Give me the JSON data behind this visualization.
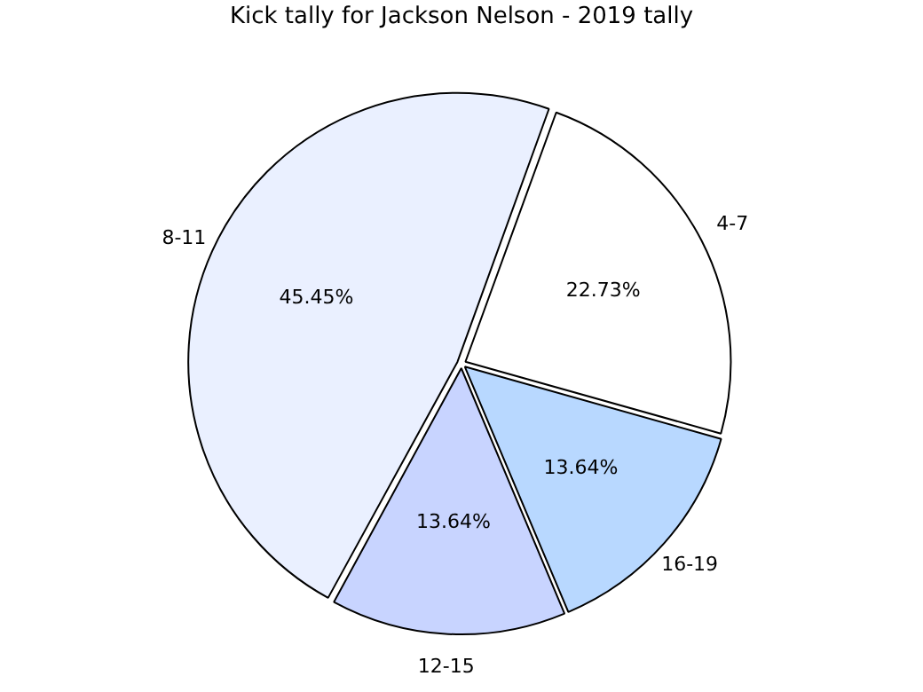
{
  "chart_data": {
    "type": "pie",
    "title": "Kick tally for Jackson Nelson - 2019 tally",
    "categories": [
      "4-7",
      "16-19",
      "12-15",
      "8-11"
    ],
    "values": [
      22.73,
      13.64,
      13.64,
      45.45
    ],
    "value_labels": [
      "22.73%",
      "13.64%",
      "13.64%",
      "45.45%"
    ],
    "colors": [
      "#ffffff",
      "#b8d8ff",
      "#c8d4ff",
      "#eaf0ff"
    ],
    "legend": false
  }
}
